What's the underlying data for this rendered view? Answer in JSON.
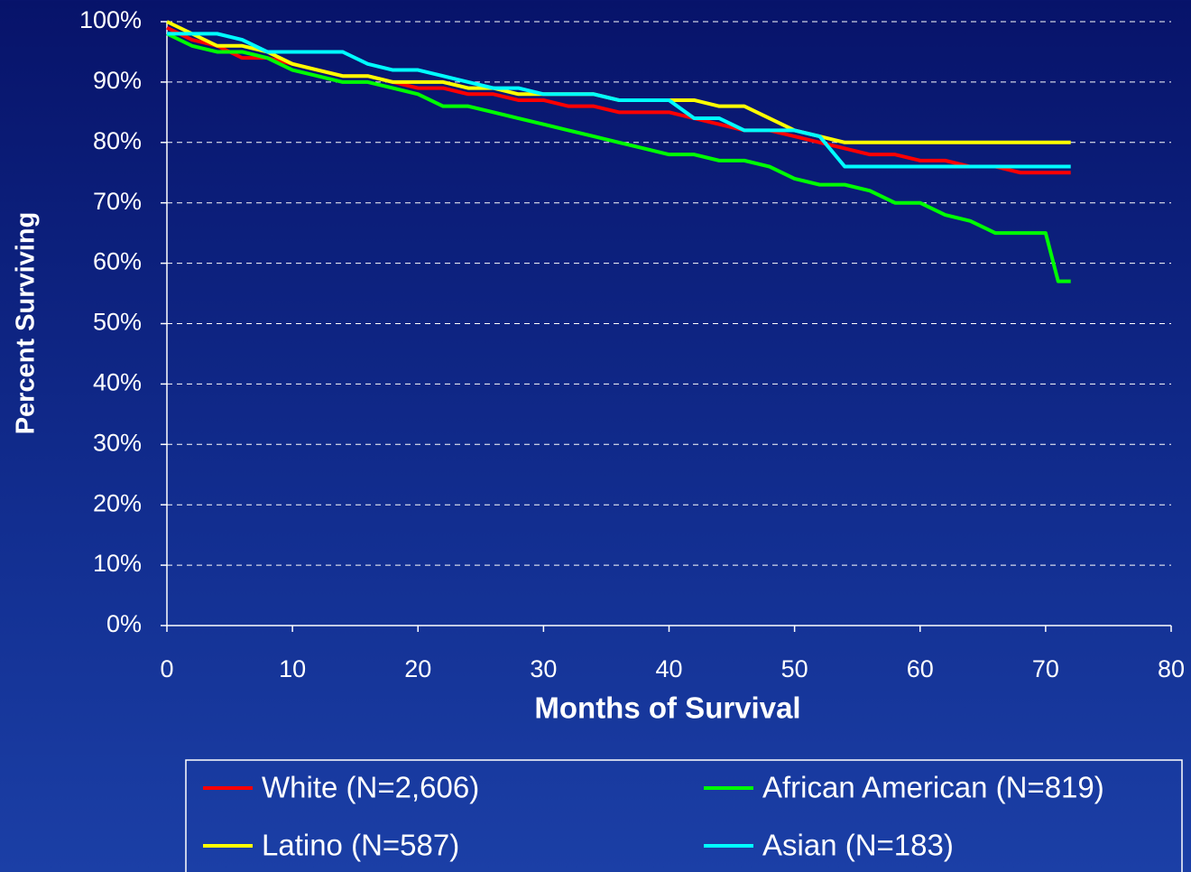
{
  "chart_data": {
    "type": "line",
    "xlabel": "Months of Survival",
    "ylabel": "Percent Surviving",
    "x": [
      0,
      2,
      4,
      6,
      8,
      10,
      12,
      14,
      16,
      18,
      20,
      22,
      24,
      26,
      28,
      30,
      32,
      34,
      36,
      38,
      40,
      42,
      44,
      46,
      48,
      50,
      52,
      54,
      56,
      58,
      60,
      62,
      64,
      66,
      68,
      70,
      71,
      72
    ],
    "series": [
      {
        "name": "White (N=2,606)",
        "color": "#ff0000",
        "values": [
          99,
          97,
          96,
          94,
          94,
          93,
          92,
          91,
          91,
          90,
          89,
          89,
          88,
          88,
          87,
          87,
          86,
          86,
          85,
          85,
          85,
          84,
          83,
          82,
          82,
          81,
          80,
          79,
          78,
          78,
          77,
          77,
          76,
          76,
          75,
          75,
          75,
          75
        ]
      },
      {
        "name": "African American (N=819)",
        "color": "#00ff00",
        "values": [
          98,
          96,
          95,
          95,
          94,
          92,
          91,
          90,
          90,
          89,
          88,
          86,
          86,
          85,
          84,
          83,
          82,
          81,
          80,
          79,
          78,
          78,
          77,
          77,
          76,
          74,
          73,
          73,
          72,
          70,
          70,
          68,
          67,
          65,
          65,
          65,
          57,
          57
        ]
      },
      {
        "name": "Latino (N=587)",
        "color": "#ffff00",
        "values": [
          100,
          98,
          96,
          96,
          95,
          93,
          92,
          91,
          91,
          90,
          90,
          90,
          89,
          89,
          88,
          88,
          88,
          88,
          87,
          87,
          87,
          87,
          86,
          86,
          84,
          82,
          81,
          80,
          80,
          80,
          80,
          80,
          80,
          80,
          80,
          80,
          80,
          80
        ]
      },
      {
        "name": "Asian (N=183)",
        "color": "#00ffff",
        "values": [
          98,
          98,
          98,
          97,
          95,
          95,
          95,
          95,
          93,
          92,
          92,
          91,
          90,
          89,
          89,
          88,
          88,
          88,
          87,
          87,
          87,
          84,
          84,
          82,
          82,
          82,
          81,
          76,
          76,
          76,
          76,
          76,
          76,
          76,
          76,
          76,
          76,
          76
        ]
      }
    ],
    "xlim": [
      0,
      80
    ],
    "xticks": [
      0,
      10,
      20,
      30,
      40,
      50,
      60,
      70,
      80
    ],
    "ylim": [
      0,
      100
    ],
    "yticks": [
      {
        "value": 0,
        "label": "0%"
      },
      {
        "value": 10,
        "label": "10%"
      },
      {
        "value": 20,
        "label": "20%"
      },
      {
        "value": 30,
        "label": "30%"
      },
      {
        "value": 40,
        "label": "40%"
      },
      {
        "value": 50,
        "label": "50%"
      },
      {
        "value": 60,
        "label": "60%"
      },
      {
        "value": 70,
        "label": "70%"
      },
      {
        "value": 80,
        "label": "80%"
      },
      {
        "value": 90,
        "label": "90%"
      },
      {
        "value": 100,
        "label": "100%"
      }
    ],
    "grid": true,
    "legend": "bottom"
  }
}
